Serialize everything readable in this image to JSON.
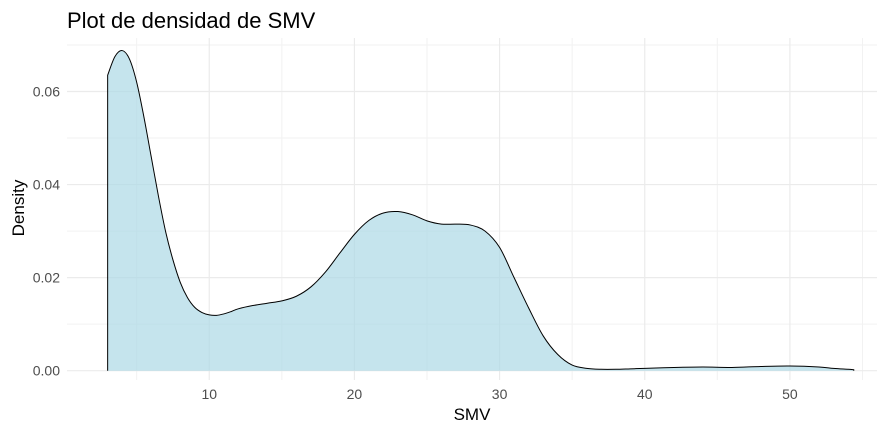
{
  "chart_data": {
    "type": "area",
    "title": "Plot de densidad de SMV",
    "xlabel": "SMV",
    "ylabel": "Density",
    "xlim": [
      0.2,
      56
    ],
    "ylim": [
      -0.002,
      0.0715
    ],
    "x_ticks": [
      10,
      20,
      30,
      40,
      50
    ],
    "x_tick_labels": [
      "10",
      "20",
      "30",
      "40",
      "50"
    ],
    "y_ticks": [
      0.0,
      0.02,
      0.04,
      0.06
    ],
    "y_tick_labels": [
      "0.00",
      "0.02",
      "0.04",
      "0.06"
    ],
    "grid": true,
    "legend": "none",
    "fill_color": "#add8e6",
    "fill_opacity": 0.7,
    "line_color": "#000000",
    "series": [
      {
        "x": [
          3.0,
          3.5,
          4.0,
          4.5,
          5.0,
          5.5,
          6.0,
          6.5,
          7.0,
          7.5,
          8.0,
          8.5,
          9.0,
          9.5,
          10.0,
          10.5,
          11.0,
          11.5,
          12.0,
          13.0,
          14.0,
          15.0,
          16.0,
          17.0,
          18.0,
          19.0,
          20.0,
          21.0,
          22.0,
          23.0,
          24.0,
          25.0,
          26.0,
          27.0,
          28.0,
          29.0,
          30.0,
          31.0,
          32.0,
          33.0,
          34.0,
          35.0,
          36.0,
          37.0,
          38.0,
          39.0,
          40.0,
          42.0,
          44.0,
          46.0,
          48.0,
          50.0,
          52.0,
          53.0,
          54.0,
          54.4
        ],
        "y": [
          0.0635,
          0.0675,
          0.0688,
          0.067,
          0.062,
          0.0545,
          0.046,
          0.0375,
          0.0298,
          0.0238,
          0.019,
          0.0157,
          0.0136,
          0.0125,
          0.012,
          0.0119,
          0.0122,
          0.0127,
          0.0133,
          0.014,
          0.0145,
          0.015,
          0.016,
          0.018,
          0.0212,
          0.0253,
          0.0293,
          0.0323,
          0.0339,
          0.0342,
          0.0335,
          0.0322,
          0.0315,
          0.0315,
          0.0313,
          0.03,
          0.0265,
          0.02,
          0.0135,
          0.0075,
          0.0035,
          0.0012,
          0.0005,
          0.0003,
          0.0003,
          0.0004,
          0.0005,
          0.0007,
          0.0008,
          0.0007,
          0.0009,
          0.001,
          0.0008,
          0.0005,
          0.0003,
          0.0002
        ]
      }
    ]
  }
}
